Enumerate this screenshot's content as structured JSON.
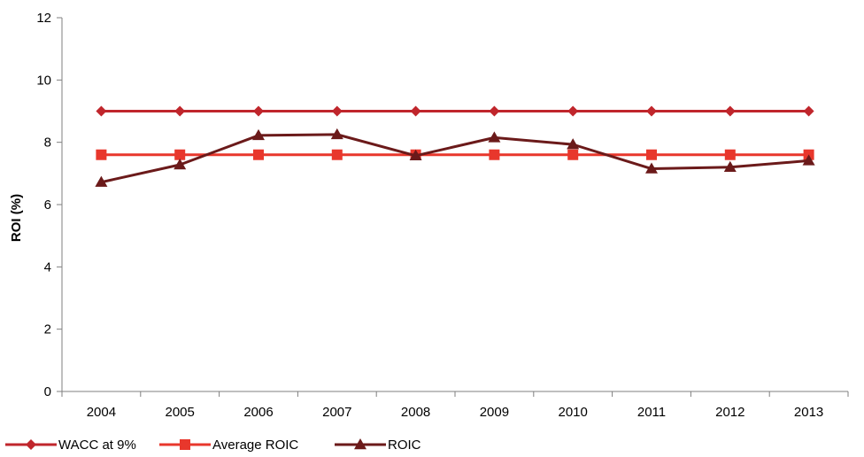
{
  "chart_data": {
    "type": "line",
    "title": "",
    "xlabel": "",
    "ylabel": "ROI (%)",
    "categories": [
      "2004",
      "2005",
      "2006",
      "2007",
      "2008",
      "2009",
      "2010",
      "2011",
      "2012",
      "2013"
    ],
    "ylim": [
      0,
      12
    ],
    "yticks": [
      "0",
      "2",
      "4",
      "6",
      "8",
      "10",
      "12"
    ],
    "grid": false,
    "legend_position": "bottom-left",
    "series": [
      {
        "name": "WACC at 9%",
        "marker": "diamond",
        "color": "#c0262c",
        "values": [
          9.0,
          9.0,
          9.0,
          9.0,
          9.0,
          9.0,
          9.0,
          9.0,
          9.0,
          9.0
        ]
      },
      {
        "name": "Average ROIC",
        "marker": "square",
        "color": "#e8372c",
        "values": [
          7.6,
          7.6,
          7.6,
          7.6,
          7.6,
          7.6,
          7.6,
          7.6,
          7.6,
          7.6
        ]
      },
      {
        "name": "ROIC",
        "marker": "triangle",
        "color": "#6b1a1a",
        "values": [
          6.72,
          7.28,
          8.22,
          8.25,
          7.57,
          8.15,
          7.93,
          7.15,
          7.2,
          7.41
        ]
      }
    ]
  }
}
